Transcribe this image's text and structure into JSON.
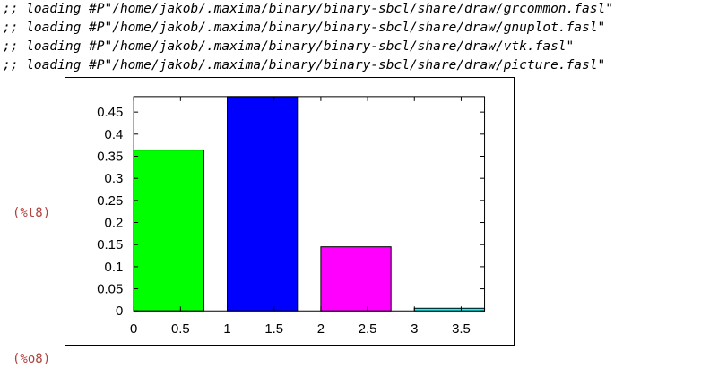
{
  "log_lines": [
    ";; loading #P\"/home/jakob/.maxima/binary/binary-sbcl/share/draw/grcommon.fasl\"",
    ";; loading #P\"/home/jakob/.maxima/binary/binary-sbcl/share/draw/gnuplot.fasl\"",
    ";; loading #P\"/home/jakob/.maxima/binary/binary-sbcl/share/draw/vtk.fasl\"",
    ";; loading #P\"/home/jakob/.maxima/binary/binary-sbcl/share/draw/picture.fasl\""
  ],
  "labels": {
    "t8": "(%t8)",
    "o8": "(%o8)"
  },
  "chart_data": {
    "type": "bar",
    "title": "",
    "xlabel": "",
    "ylabel": "",
    "xlim": [
      0,
      3.75
    ],
    "ylim": [
      0,
      0.485
    ],
    "x_ticks": [
      0,
      0.5,
      1,
      1.5,
      2,
      2.5,
      3,
      3.5
    ],
    "y_ticks": [
      0,
      0.05,
      0.1,
      0.15,
      0.2,
      0.25,
      0.3,
      0.35,
      0.4,
      0.45
    ],
    "grid": false,
    "bars": [
      {
        "x_start": 0,
        "x_end": 0.75,
        "value": 0.364,
        "color": "#00ff00"
      },
      {
        "x_start": 1,
        "x_end": 1.75,
        "value": 0.485,
        "color": "#0000ff"
      },
      {
        "x_start": 2,
        "x_end": 2.75,
        "value": 0.145,
        "color": "#ff00ff"
      },
      {
        "x_start": 3,
        "x_end": 3.75,
        "value": 0.006,
        "color": "#00ffff"
      }
    ]
  }
}
